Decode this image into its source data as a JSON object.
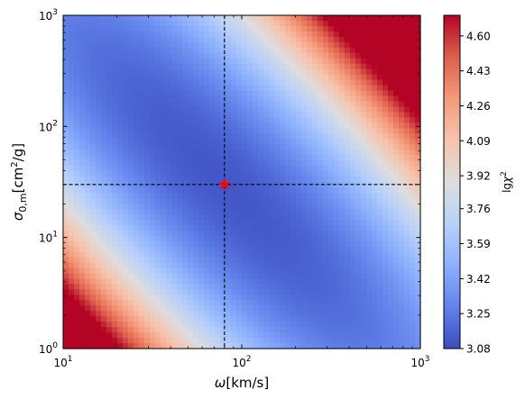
{
  "chart_data": {
    "type": "heatmap",
    "xscale": "log",
    "yscale": "log",
    "xlim": [
      10,
      1000
    ],
    "ylim": [
      1,
      1000
    ],
    "x_ticks": [
      {
        "value": 10,
        "base": "10",
        "exp": "1"
      },
      {
        "value": 100,
        "base": "10",
        "exp": "2"
      },
      {
        "value": 1000,
        "base": "10",
        "exp": "3"
      }
    ],
    "y_ticks": [
      {
        "value": 1,
        "base": "10",
        "exp": "0"
      },
      {
        "value": 10,
        "base": "10",
        "exp": "1"
      },
      {
        "value": 100,
        "base": "10",
        "exp": "2"
      },
      {
        "value": 1000,
        "base": "10",
        "exp": "3"
      }
    ],
    "xlabel": {
      "symbol": "ω",
      "unit": "[km/s]"
    },
    "ylabel": {
      "symbol": "σ",
      "sub": "0,m",
      "unit_pre": "[cm",
      "unit_sup": "2",
      "unit_post": "/g]"
    },
    "colorbar": {
      "label": {
        "base": "lg",
        "symbol": "χ",
        "sup": "2"
      },
      "colormap": "coolwarm",
      "range": [
        3.08,
        4.7
      ],
      "ticks": [
        "3.08",
        "3.25",
        "3.42",
        "3.59",
        "3.76",
        "3.92",
        "4.09",
        "4.26",
        "4.43",
        "4.60"
      ]
    },
    "best_fit": {
      "x": 80,
      "y": 30,
      "marker": "star",
      "color": "#ff0000"
    },
    "crosshair": {
      "x": 80,
      "y": 30,
      "style": "dashed",
      "color": "#000000"
    },
    "surface": {
      "description_model": "valley along log10(y) = c - k*log10(x)",
      "k": 1.5,
      "c": 4.33,
      "center_xlog": 1.9,
      "valley_value": 3.12,
      "curvature": 0.9,
      "gradient_along": 0.18,
      "max_value": 4.7
    }
  }
}
